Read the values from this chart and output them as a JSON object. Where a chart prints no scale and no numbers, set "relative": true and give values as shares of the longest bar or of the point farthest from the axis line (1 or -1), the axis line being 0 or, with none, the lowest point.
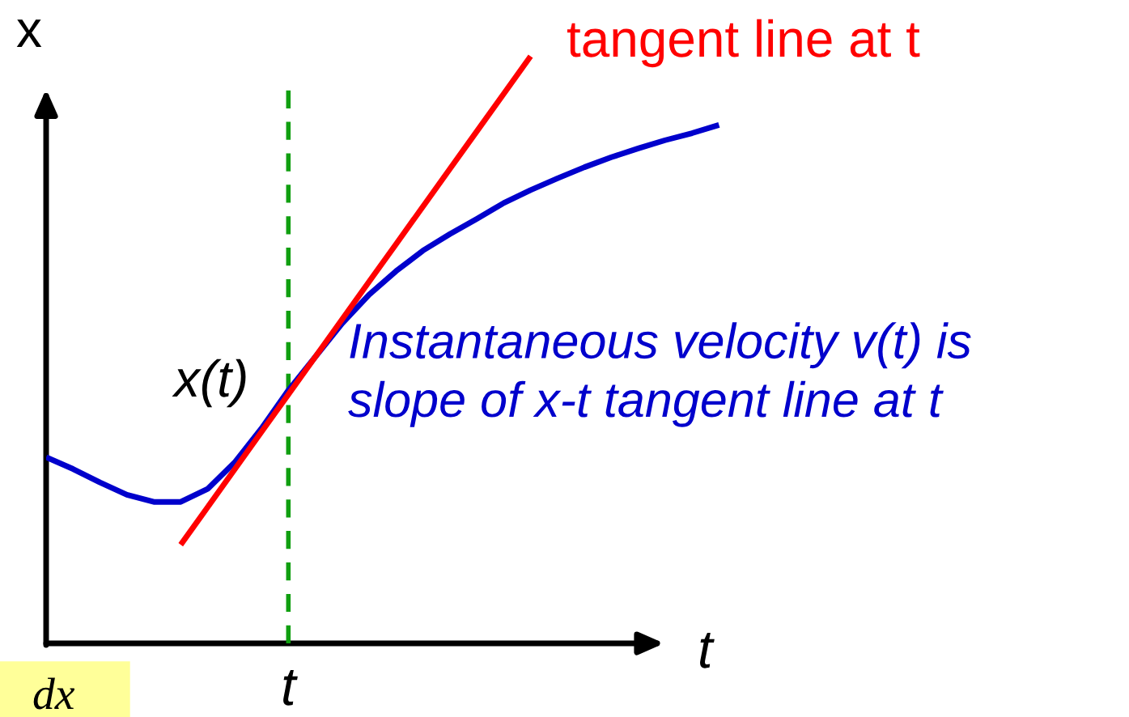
{
  "chart_data": {
    "type": "line",
    "relative": true,
    "ylabel": "x",
    "xlabel": "t",
    "categories": [
      null,
      null,
      null,
      null,
      null,
      null,
      null,
      null,
      null,
      null,
      null,
      null,
      null,
      null,
      null,
      null,
      null,
      null,
      null,
      null,
      null,
      null,
      null,
      null,
      null,
      null
    ],
    "series": [
      {
        "name": "x(t)",
        "color": "#0000cc",
        "values": [
          0.317,
          0.297,
          0.274,
          0.253,
          0.241,
          0.241,
          0.263,
          0.308,
          0.366,
          0.431,
          0.488,
          0.545,
          0.594,
          0.634,
          0.669,
          0.697,
          0.723,
          0.75,
          0.772,
          0.792,
          0.811,
          0.828,
          0.843,
          0.857,
          0.869,
          0.883
        ]
      },
      {
        "name": "tangent line at t",
        "color": "#ff0000",
        "values": [
          null,
          null,
          null,
          null,
          null,
          0.168,
          0.232,
          0.296,
          0.36,
          0.424,
          0.488,
          0.552,
          0.616,
          0.68,
          0.744,
          0.808,
          0.872,
          0.936,
          1.0,
          null,
          null,
          null,
          null,
          null,
          null,
          null
        ]
      }
    ],
    "annotations": [
      "Instantaneous velocity v(t) is\nslope of x-t tangent line at t",
      "dx",
      "t"
    ]
  }
}
